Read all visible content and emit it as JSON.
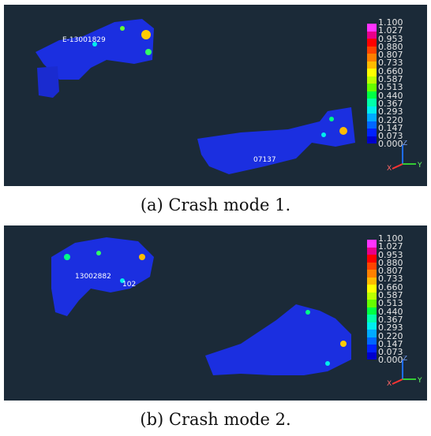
{
  "legend": {
    "values": [
      "1.100",
      "1.027",
      "0.953",
      "0.880",
      "0.807",
      "0.733",
      "0.660",
      "0.587",
      "0.513",
      "0.440",
      "0.367",
      "0.293",
      "0.220",
      "0.147",
      "0.073",
      "0.000"
    ],
    "colors": [
      "#ff33ff",
      "#e8008a",
      "#ff0000",
      "#ff4400",
      "#ff8000",
      "#ffbb00",
      "#ffff00",
      "#bbff00",
      "#66ff00",
      "#00ff44",
      "#00ffaa",
      "#00eeee",
      "#00aaff",
      "#0066ff",
      "#0022ff",
      "#0000cc"
    ]
  },
  "panels": [
    {
      "caption": "(a) Crash mode 1.",
      "part_labels": [
        "E-13001829",
        "07137"
      ]
    },
    {
      "caption": "(b) Crash mode 2.",
      "part_labels": [
        "13002882",
        "102"
      ]
    }
  ],
  "triad": {
    "z": "Z",
    "x": "X",
    "y": "Y"
  },
  "colors": {
    "background": "#1b2a38",
    "part": "#1a2ee6"
  }
}
